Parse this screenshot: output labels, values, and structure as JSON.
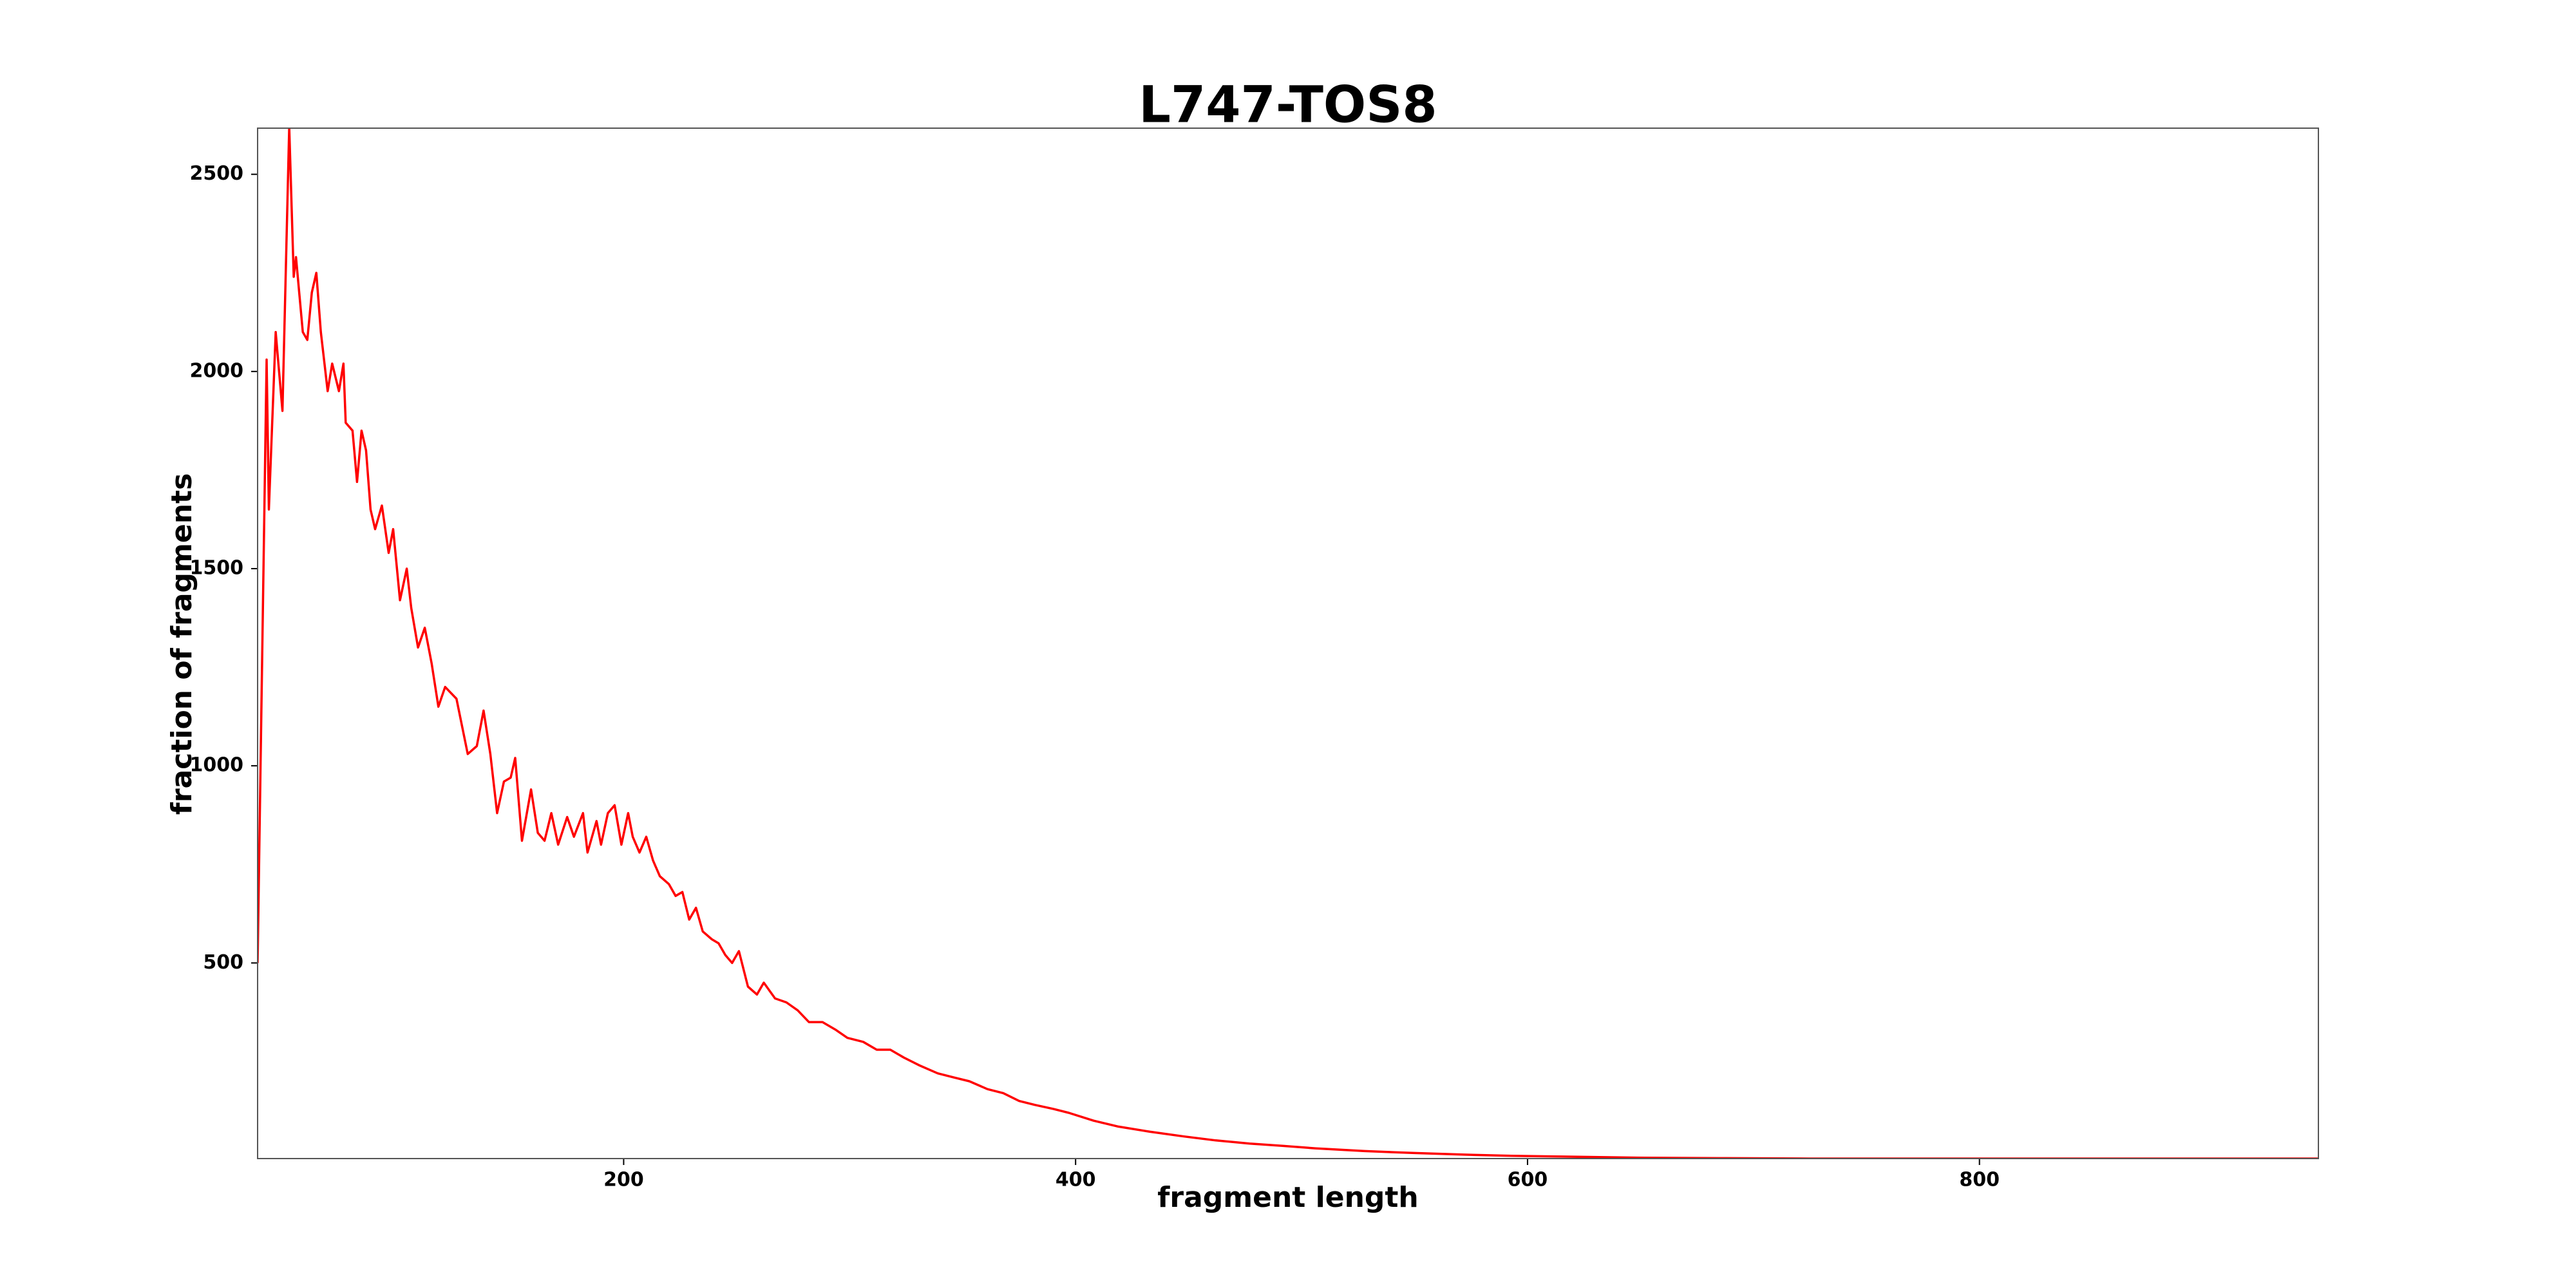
{
  "chart_data": {
    "type": "line",
    "title": "L747-TOS8",
    "x_label": "fragment length",
    "y_label": "fraction of fragments",
    "xlim": [
      38,
      950
    ],
    "ylim": [
      4,
      2617
    ],
    "xticks": [
      200,
      400,
      600,
      800
    ],
    "yticks": [
      500,
      1000,
      1500,
      2000,
      2500
    ],
    "grid": false,
    "x": [
      38,
      42,
      43,
      46,
      49,
      52,
      54,
      55,
      58,
      60,
      62,
      64,
      66,
      69,
      71,
      74,
      76,
      77,
      80,
      82,
      84,
      86,
      88,
      90,
      93,
      96,
      98,
      101,
      104,
      106,
      109,
      112,
      115,
      118,
      121,
      126,
      131,
      135,
      138,
      141,
      144,
      147,
      150,
      152,
      155,
      159,
      162,
      165,
      168,
      171,
      175,
      178,
      182,
      184,
      188,
      190,
      193,
      196,
      199,
      202,
      204,
      207,
      210,
      213,
      216,
      220,
      223,
      226,
      229,
      232,
      235,
      239,
      242,
      245,
      248,
      251,
      255,
      259,
      262,
      267,
      272,
      277,
      282,
      288,
      294,
      299,
      306,
      312,
      318,
      324,
      331,
      339,
      346,
      353,
      361,
      368,
      375,
      382,
      390,
      397,
      408,
      419,
      433,
      448,
      462,
      477,
      492,
      506,
      528,
      550,
      572,
      593,
      615,
      652,
      688,
      725,
      761,
      797,
      834,
      870,
      907,
      950
    ],
    "series": [
      {
        "name": "L747-TOS8",
        "color": "#ff0000",
        "values": [
          500,
          2030,
          1650,
          2100,
          1900,
          2620,
          2240,
          2290,
          2100,
          2080,
          2200,
          2250,
          2100,
          1950,
          2020,
          1950,
          2020,
          1870,
          1850,
          1720,
          1850,
          1800,
          1650,
          1600,
          1660,
          1540,
          1600,
          1420,
          1500,
          1400,
          1300,
          1350,
          1260,
          1150,
          1200,
          1170,
          1030,
          1050,
          1140,
          1030,
          880,
          960,
          970,
          1020,
          810,
          940,
          830,
          810,
          880,
          800,
          870,
          820,
          880,
          780,
          860,
          800,
          880,
          900,
          800,
          880,
          820,
          780,
          820,
          760,
          720,
          700,
          670,
          680,
          610,
          640,
          580,
          560,
          550,
          520,
          500,
          530,
          440,
          420,
          450,
          410,
          400,
          380,
          350,
          350,
          330,
          310,
          300,
          280,
          280,
          260,
          240,
          220,
          210,
          200,
          180,
          170,
          150,
          140,
          130,
          120,
          100,
          85,
          72,
          60,
          50,
          42,
          36,
          30,
          23,
          18,
          14,
          11,
          9,
          6,
          5,
          4,
          4,
          4,
          4,
          4,
          4,
          4
        ]
      }
    ]
  }
}
